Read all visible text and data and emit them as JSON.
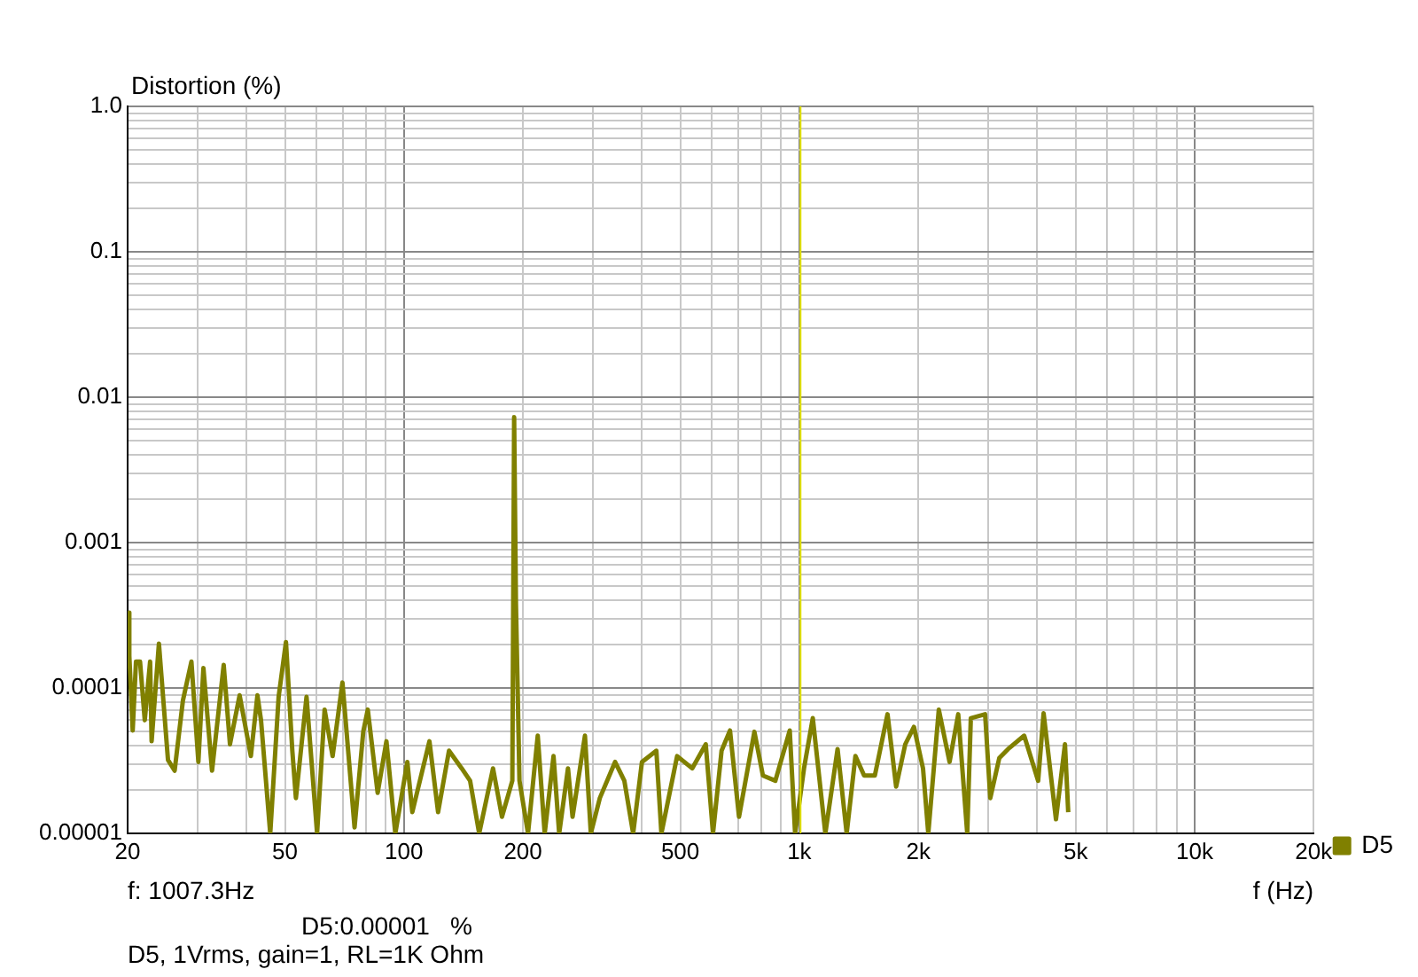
{
  "chart_data": {
    "type": "line",
    "xlabel": "f (Hz)",
    "ylabel": "Distortion (%)",
    "log": "xy",
    "grid": true,
    "legend": "bottom right",
    "marker": "none",
    "line_style": "solid",
    "xlim": [
      20,
      20000
    ],
    "ylim": [
      1e-05,
      1
    ],
    "xticks": [
      20,
      {
        "value": 30,
        "label": null
      },
      {
        "value": 40,
        "label": null
      },
      50,
      {
        "value": 60,
        "label": null
      },
      {
        "value": 70,
        "label": null
      },
      {
        "value": 80,
        "label": null
      },
      {
        "value": 90,
        "label": null
      },
      100,
      200,
      {
        "value": 300,
        "label": null
      },
      {
        "value": 400,
        "label": null
      },
      500,
      {
        "value": 600,
        "label": null
      },
      {
        "value": 700,
        "label": null
      },
      {
        "value": 800,
        "label": null
      },
      {
        "value": 900,
        "label": null
      },
      {
        "value": 1000,
        "label": "1k"
      },
      {
        "value": 2000,
        "label": "2k"
      },
      {
        "value": 3000,
        "label": null
      },
      {
        "value": 4000,
        "label": null
      },
      {
        "value": 5000,
        "label": "5k"
      },
      {
        "value": 6000,
        "label": null
      },
      {
        "value": 7000,
        "label": null
      },
      {
        "value": 8000,
        "label": null
      },
      {
        "value": 9000,
        "label": null
      },
      {
        "value": 10000,
        "label": "10k"
      },
      {
        "value": 20000,
        "label": "20k"
      }
    ],
    "yticks": [
      {
        "value": 1e-05,
        "label": "0.00001"
      },
      {
        "value": 2e-05,
        "label": null
      },
      {
        "value": 3e-05,
        "label": null
      },
      {
        "value": 4e-05,
        "label": null
      },
      {
        "value": 5e-05,
        "label": null
      },
      {
        "value": 6e-05,
        "label": null
      },
      {
        "value": 7e-05,
        "label": null
      },
      {
        "value": 8e-05,
        "label": null
      },
      {
        "value": 9e-05,
        "label": null
      },
      {
        "value": 0.0001,
        "label": "0.0001"
      },
      {
        "value": 0.0002,
        "label": null
      },
      {
        "value": 0.0003,
        "label": null
      },
      {
        "value": 0.0004,
        "label": null
      },
      {
        "value": 0.0005,
        "label": null
      },
      {
        "value": 0.0006,
        "label": null
      },
      {
        "value": 0.0007,
        "label": null
      },
      {
        "value": 0.0008,
        "label": null
      },
      {
        "value": 0.0009,
        "label": null
      },
      0.001,
      {
        "value": 0.002,
        "label": null
      },
      {
        "value": 0.003,
        "label": null
      },
      {
        "value": 0.004,
        "label": null
      },
      {
        "value": 0.005,
        "label": null
      },
      {
        "value": 0.006,
        "label": null
      },
      {
        "value": 0.007,
        "label": null
      },
      {
        "value": 0.008,
        "label": null
      },
      {
        "value": 0.009,
        "label": null
      },
      0.01,
      {
        "value": 0.02,
        "label": null
      },
      {
        "value": 0.03,
        "label": null
      },
      {
        "value": 0.04,
        "label": null
      },
      {
        "value": 0.05,
        "label": null
      },
      {
        "value": 0.06,
        "label": null
      },
      {
        "value": 0.07,
        "label": null
      },
      {
        "value": 0.08,
        "label": null
      },
      {
        "value": 0.09,
        "label": null
      },
      0.1,
      {
        "value": 0.2,
        "label": null
      },
      {
        "value": 0.3,
        "label": null
      },
      {
        "value": 0.4,
        "label": null
      },
      {
        "value": 0.5,
        "label": null
      },
      {
        "value": 0.6,
        "label": null
      },
      {
        "value": 0.7,
        "label": null
      },
      {
        "value": 0.8,
        "label": null
      },
      {
        "value": 0.9,
        "label": null
      },
      {
        "value": 1,
        "label": "1.0"
      }
    ],
    "ref_lines": [
      {
        "axis": "x",
        "value": 1007.3,
        "color": "#e0e000"
      }
    ],
    "annotations": [
      "f: 1007.3Hz",
      "D5:0.00001   %",
      "D5, 1Vrms, gain=1, RL=1K Ohm"
    ],
    "series": [
      {
        "name": "D5",
        "color": "#808000",
        "x": [
          20,
          20.2,
          20.6,
          21,
          21.5,
          22.1,
          22.8,
          23,
          24,
          25.3,
          26.3,
          27.6,
          29,
          30.2,
          31.1,
          32.7,
          35,
          36.3,
          38.4,
          41,
          42.6,
          43.5,
          45.9,
          48.2,
          50.3,
          52.2,
          53.3,
          56.7,
          60.3,
          63,
          66,
          69.9,
          75,
          78.9,
          81,
          85.8,
          90.3,
          95.1,
          102,
          105,
          116,
          122,
          130,
          140,
          147,
          155,
          168,
          177,
          188,
          190,
          192,
          196,
          206,
          218,
          227,
          239,
          247,
          260,
          267,
          287,
          297,
          313,
          342,
          361,
          380,
          400,
          435,
          448,
          491,
          536,
          580,
          605,
          636,
          668,
          704,
          770,
          809,
          870,
          946,
          976,
          1028,
          1082,
          1164,
          1250,
          1318,
          1387,
          1459,
          1553,
          1672,
          1758,
          1854,
          1950,
          2056,
          2120,
          2254,
          2400,
          2524,
          2660,
          2716,
          2952,
          3042,
          3206,
          3374,
          3706,
          4020,
          4150,
          4460,
          4700,
          4790
        ],
        "values": [
          0.00033,
          0.000166,
          5.1e-05,
          0.000152,
          0.000152,
          6e-05,
          0.000152,
          4.3e-05,
          0.000202,
          3.2e-05,
          2.7e-05,
          8.2e-05,
          0.000152,
          3.1e-05,
          0.000137,
          2.7e-05,
          0.000144,
          4.1e-05,
          8.9e-05,
          3.4e-05,
          8.9e-05,
          6e-05,
          1e-05,
          8.7e-05,
          0.000207,
          3.7e-05,
          1.75e-05,
          8.7e-05,
          1e-05,
          7.1e-05,
          3.4e-05,
          0.000109,
          1.1e-05,
          5e-05,
          7.1e-05,
          1.9e-05,
          4.3e-05,
          1e-05,
          3.1e-05,
          1.4e-05,
          4.3e-05,
          1.4e-05,
          3.7e-05,
          2.8e-05,
          2.3e-05,
          1e-05,
          2.8e-05,
          1.3e-05,
          2.3e-05,
          0.0073,
          0.00038,
          2.3e-05,
          1e-05,
          4.7e-05,
          1e-05,
          3.4e-05,
          1e-05,
          2.8e-05,
          1.3e-05,
          4.7e-05,
          1e-05,
          1.75e-05,
          3.1e-05,
          2.3e-05,
          1e-05,
          3.1e-05,
          3.7e-05,
          1e-05,
          3.4e-05,
          2.8e-05,
          4.1e-05,
          1e-05,
          3.7e-05,
          5.1e-05,
          1.3e-05,
          5e-05,
          2.5e-05,
          2.3e-05,
          5.1e-05,
          1e-05,
          2.8e-05,
          6.2e-05,
          1e-05,
          3.8e-05,
          1e-05,
          3.4e-05,
          2.5e-05,
          2.5e-05,
          6.6e-05,
          2.1e-05,
          4.1e-05,
          5.4e-05,
          2.8e-05,
          1e-05,
          7.1e-05,
          3.1e-05,
          6.6e-05,
          1e-05,
          6.2e-05,
          6.6e-05,
          1.75e-05,
          3.3e-05,
          3.8e-05,
          4.7e-05,
          2.3e-05,
          6.7e-05,
          1.25e-05,
          4.1e-05,
          1.4e-05
        ]
      }
    ]
  }
}
